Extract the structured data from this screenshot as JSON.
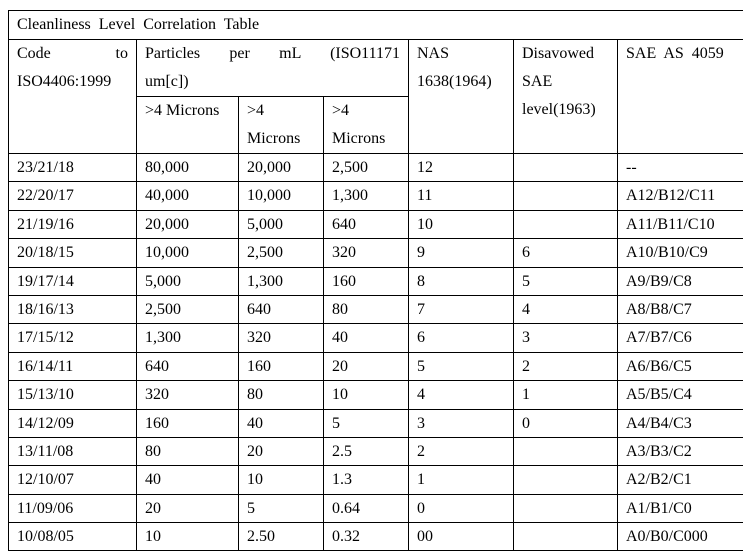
{
  "title": "Cleanliness Level Correlation Table",
  "headers": {
    "code_line1": "Code",
    "code_line1b": "to",
    "code_line2": "ISO4406:1999",
    "particles_line1": "Particles per mL (ISO11171",
    "particles_line2": "um[c])",
    "nas": "NAS 1638(1964)",
    "disavowed": "Disavowed SAE level(1963)",
    "sae": "SAE AS 4059",
    "sub": [
      ">4 Microns",
      ">4 Microns",
      ">4 Microns"
    ]
  },
  "rows": [
    [
      "23/21/18",
      "80,000",
      "20,000",
      "2,500",
      "12",
      "",
      "--"
    ],
    [
      "22/20/17",
      "40,000",
      "10,000",
      "1,300",
      "11",
      "",
      "A12/B12/C11"
    ],
    [
      "21/19/16",
      "20,000",
      "5,000",
      "640",
      "10",
      "",
      "A11/B11/C10"
    ],
    [
      "20/18/15",
      "10,000",
      "2,500",
      "320",
      "9",
      "6",
      "A10/B10/C9"
    ],
    [
      "19/17/14",
      "5,000",
      "1,300",
      "160",
      "8",
      "5",
      "A9/B9/C8"
    ],
    [
      "18/16/13",
      "2,500",
      "640",
      "80",
      "7",
      "4",
      "A8/B8/C7"
    ],
    [
      "17/15/12",
      "1,300",
      "320",
      "40",
      "6",
      "3",
      "A7/B7/C6"
    ],
    [
      "16/14/11",
      "640",
      "160",
      "20",
      "5",
      "2",
      "A6/B6/C5"
    ],
    [
      "15/13/10",
      "320",
      "80",
      "10",
      "4",
      "1",
      "A5/B5/C4"
    ],
    [
      "14/12/09",
      "160",
      "40",
      "5",
      "3",
      "0",
      "A4/B4/C3"
    ],
    [
      "13/11/08",
      "80",
      "20",
      "2.5",
      "2",
      "",
      "A3/B3/C2"
    ],
    [
      "12/10/07",
      "40",
      "10",
      "1.3",
      "1",
      "",
      "A2/B2/C1"
    ],
    [
      "11/09/06",
      "20",
      "5",
      "0.64",
      "0",
      "",
      "A1/B1/C0"
    ],
    [
      "10/08/05",
      "10",
      "2.50",
      "0.32",
      "00",
      "",
      "A0/B0/C000"
    ]
  ]
}
